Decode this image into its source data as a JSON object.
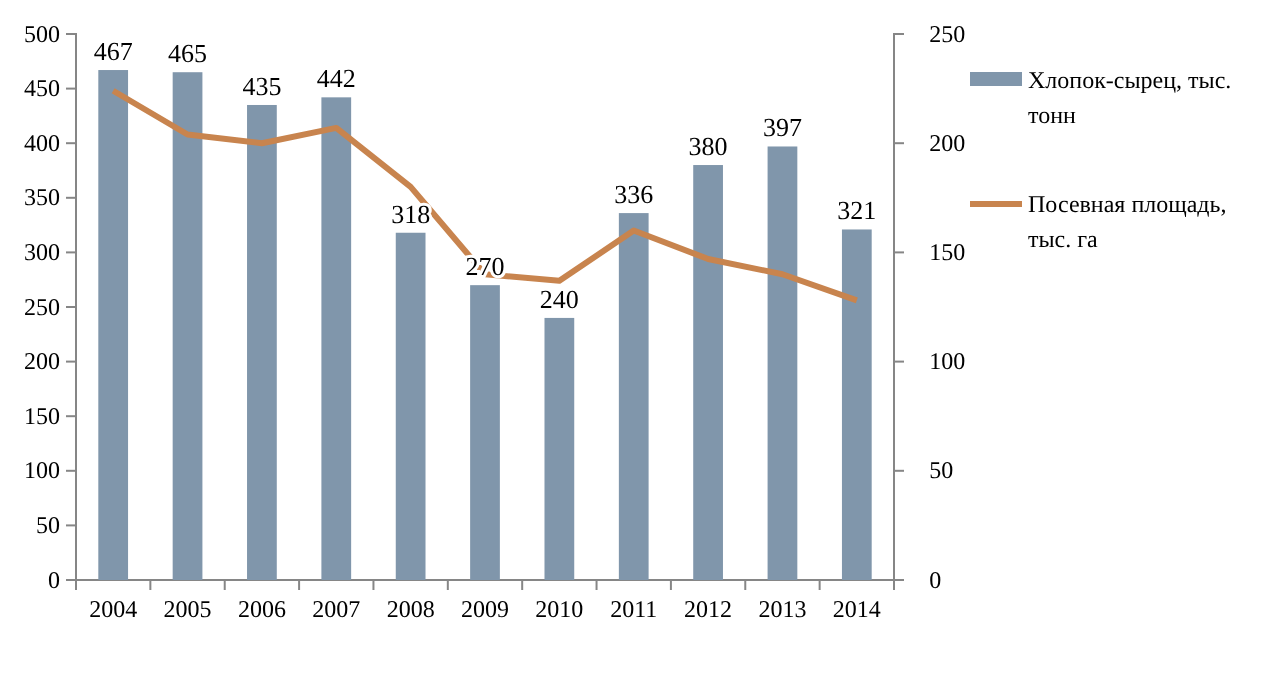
{
  "chart_data": {
    "type": "bar",
    "categories": [
      "2004",
      "2005",
      "2006",
      "2007",
      "2008",
      "2009",
      "2010",
      "2011",
      "2012",
      "2013",
      "2014"
    ],
    "series": [
      {
        "name": "Хлопок-сырец, тыс. тонн",
        "color": "#8096ab",
        "values": [
          467,
          465,
          435,
          442,
          318,
          270,
          240,
          336,
          380,
          397,
          321
        ],
        "value_labels": [
          "467",
          "465",
          "435",
          "442",
          "318",
          "270",
          "240",
          "336",
          "380",
          "397",
          "321"
        ]
      },
      {
        "name": "Посевная площадь, тыс. га",
        "type": "line",
        "axis": "y2",
        "color": "#c8844e",
        "values": [
          224,
          204,
          200,
          207,
          180,
          140,
          137,
          160,
          147,
          140,
          128
        ]
      }
    ],
    "ylim": [
      0,
      500
    ],
    "yticks": [
      0,
      50,
      100,
      150,
      200,
      250,
      300,
      350,
      400,
      450,
      500
    ],
    "y2lim": [
      0,
      250
    ],
    "y2ticks": [
      0,
      50,
      100,
      150,
      200,
      250
    ],
    "legend": "right",
    "grid": false,
    "line_style": "solid",
    "marker": "none"
  }
}
